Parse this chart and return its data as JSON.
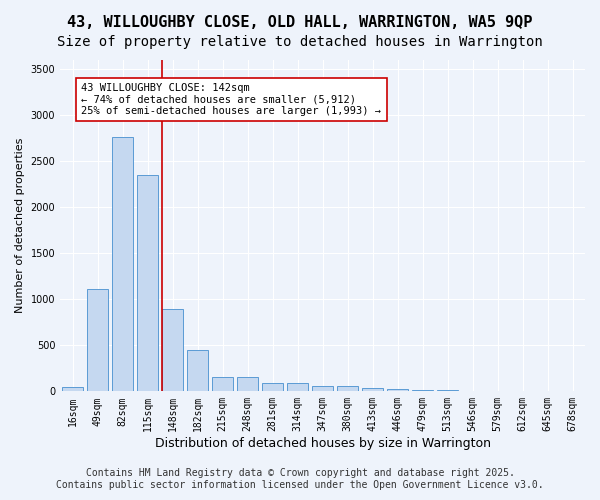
{
  "title_line1": "43, WILLOUGHBY CLOSE, OLD HALL, WARRINGTON, WA5 9QP",
  "title_line2": "Size of property relative to detached houses in Warrington",
  "xlabel": "Distribution of detached houses by size in Warrington",
  "ylabel": "Number of detached properties",
  "bar_labels": [
    "16sqm",
    "49sqm",
    "82sqm",
    "115sqm",
    "148sqm",
    "182sqm",
    "215sqm",
    "248sqm",
    "281sqm",
    "314sqm",
    "347sqm",
    "380sqm",
    "413sqm",
    "446sqm",
    "479sqm",
    "513sqm",
    "546sqm",
    "579sqm",
    "612sqm",
    "645sqm",
    "678sqm"
  ],
  "bar_values": [
    50,
    1110,
    2760,
    2350,
    900,
    450,
    160,
    160,
    90,
    90,
    55,
    55,
    40,
    25,
    15,
    10,
    7,
    5,
    5,
    5,
    5
  ],
  "bar_color": "#c5d8f0",
  "bar_edge_color": "#5b9bd5",
  "background_color": "#eef3fb",
  "grid_color": "#ffffff",
  "vline_x": 3.575,
  "vline_color": "#cc0000",
  "annotation_text": "43 WILLOUGHBY CLOSE: 142sqm\n← 74% of detached houses are smaller (5,912)\n25% of semi-detached houses are larger (1,993) →",
  "annotation_box_color": "#ffffff",
  "annotation_box_edge": "#cc0000",
  "ylim": [
    0,
    3600
  ],
  "yticks": [
    0,
    500,
    1000,
    1500,
    2000,
    2500,
    3000,
    3500
  ],
  "footer_line1": "Contains HM Land Registry data © Crown copyright and database right 2025.",
  "footer_line2": "Contains public sector information licensed under the Open Government Licence v3.0.",
  "title_fontsize": 11,
  "subtitle_fontsize": 10,
  "label_fontsize": 8,
  "tick_fontsize": 7,
  "footer_fontsize": 7
}
